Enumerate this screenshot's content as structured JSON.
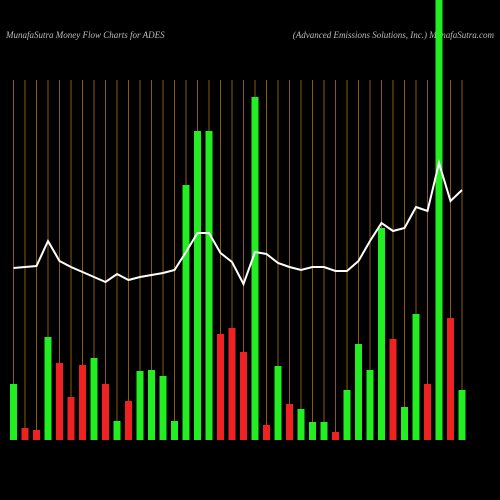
{
  "chart_data": {
    "type": "bar-line",
    "title": "MunafaSutra  Money Flow  Charts for ADES",
    "subtitle": "(Advanced Emissions Solutions,  Inc.) MunafaSutra.com",
    "background": "#000000",
    "grid": true,
    "grid_color": "#8a5a10",
    "line_color": "#ffffff",
    "categories": [
      null,
      null,
      null,
      null,
      null,
      null,
      null,
      null,
      null,
      null,
      null,
      null,
      null,
      null,
      null,
      null,
      null,
      null,
      null,
      null,
      null,
      null,
      null,
      null,
      null,
      null,
      null,
      null,
      null,
      null,
      null,
      null,
      null,
      null,
      null,
      null,
      null,
      null,
      null,
      null
    ],
    "bar_values": [
      56,
      12,
      10,
      103,
      77,
      43,
      75,
      82,
      56,
      19,
      39,
      69,
      70,
      64,
      19,
      255,
      309,
      309,
      106,
      112,
      88,
      343,
      15,
      74,
      36,
      31,
      18,
      18,
      8,
      50,
      96,
      70,
      212,
      101,
      33,
      126,
      56,
      440,
      122,
      50
    ],
    "bar_colors": [
      "#22ee22",
      "#ee2222",
      "#ee2222",
      "#22ee22",
      "#ee2222",
      "#ee2222",
      "#ee2222",
      "#22ee22",
      "#ee2222",
      "#22ee22",
      "#ee2222",
      "#22ee22",
      "#22ee22",
      "#22ee22",
      "#22ee22",
      "#22ee22",
      "#22ee22",
      "#22ee22",
      "#ee2222",
      "#ee2222",
      "#ee2222",
      "#22ee22",
      "#ee2222",
      "#22ee22",
      "#ee2222",
      "#22ee22",
      "#22ee22",
      "#22ee22",
      "#ee2222",
      "#22ee22",
      "#22ee22",
      "#22ee22",
      "#22ee22",
      "#ee2222",
      "#22ee22",
      "#22ee22",
      "#ee2222",
      "#22ee22",
      "#ee2222",
      "#22ee22"
    ],
    "line_values": [
      172,
      173,
      174,
      199,
      179,
      173,
      168,
      163,
      158,
      166,
      160,
      163,
      165,
      167,
      170,
      188,
      207,
      207,
      187,
      178,
      156,
      188,
      186,
      177,
      173,
      170,
      173,
      173,
      169,
      169,
      179,
      199,
      217,
      209,
      212,
      233,
      229,
      277,
      239,
      250
    ],
    "ylim": [
      0,
      360
    ]
  }
}
